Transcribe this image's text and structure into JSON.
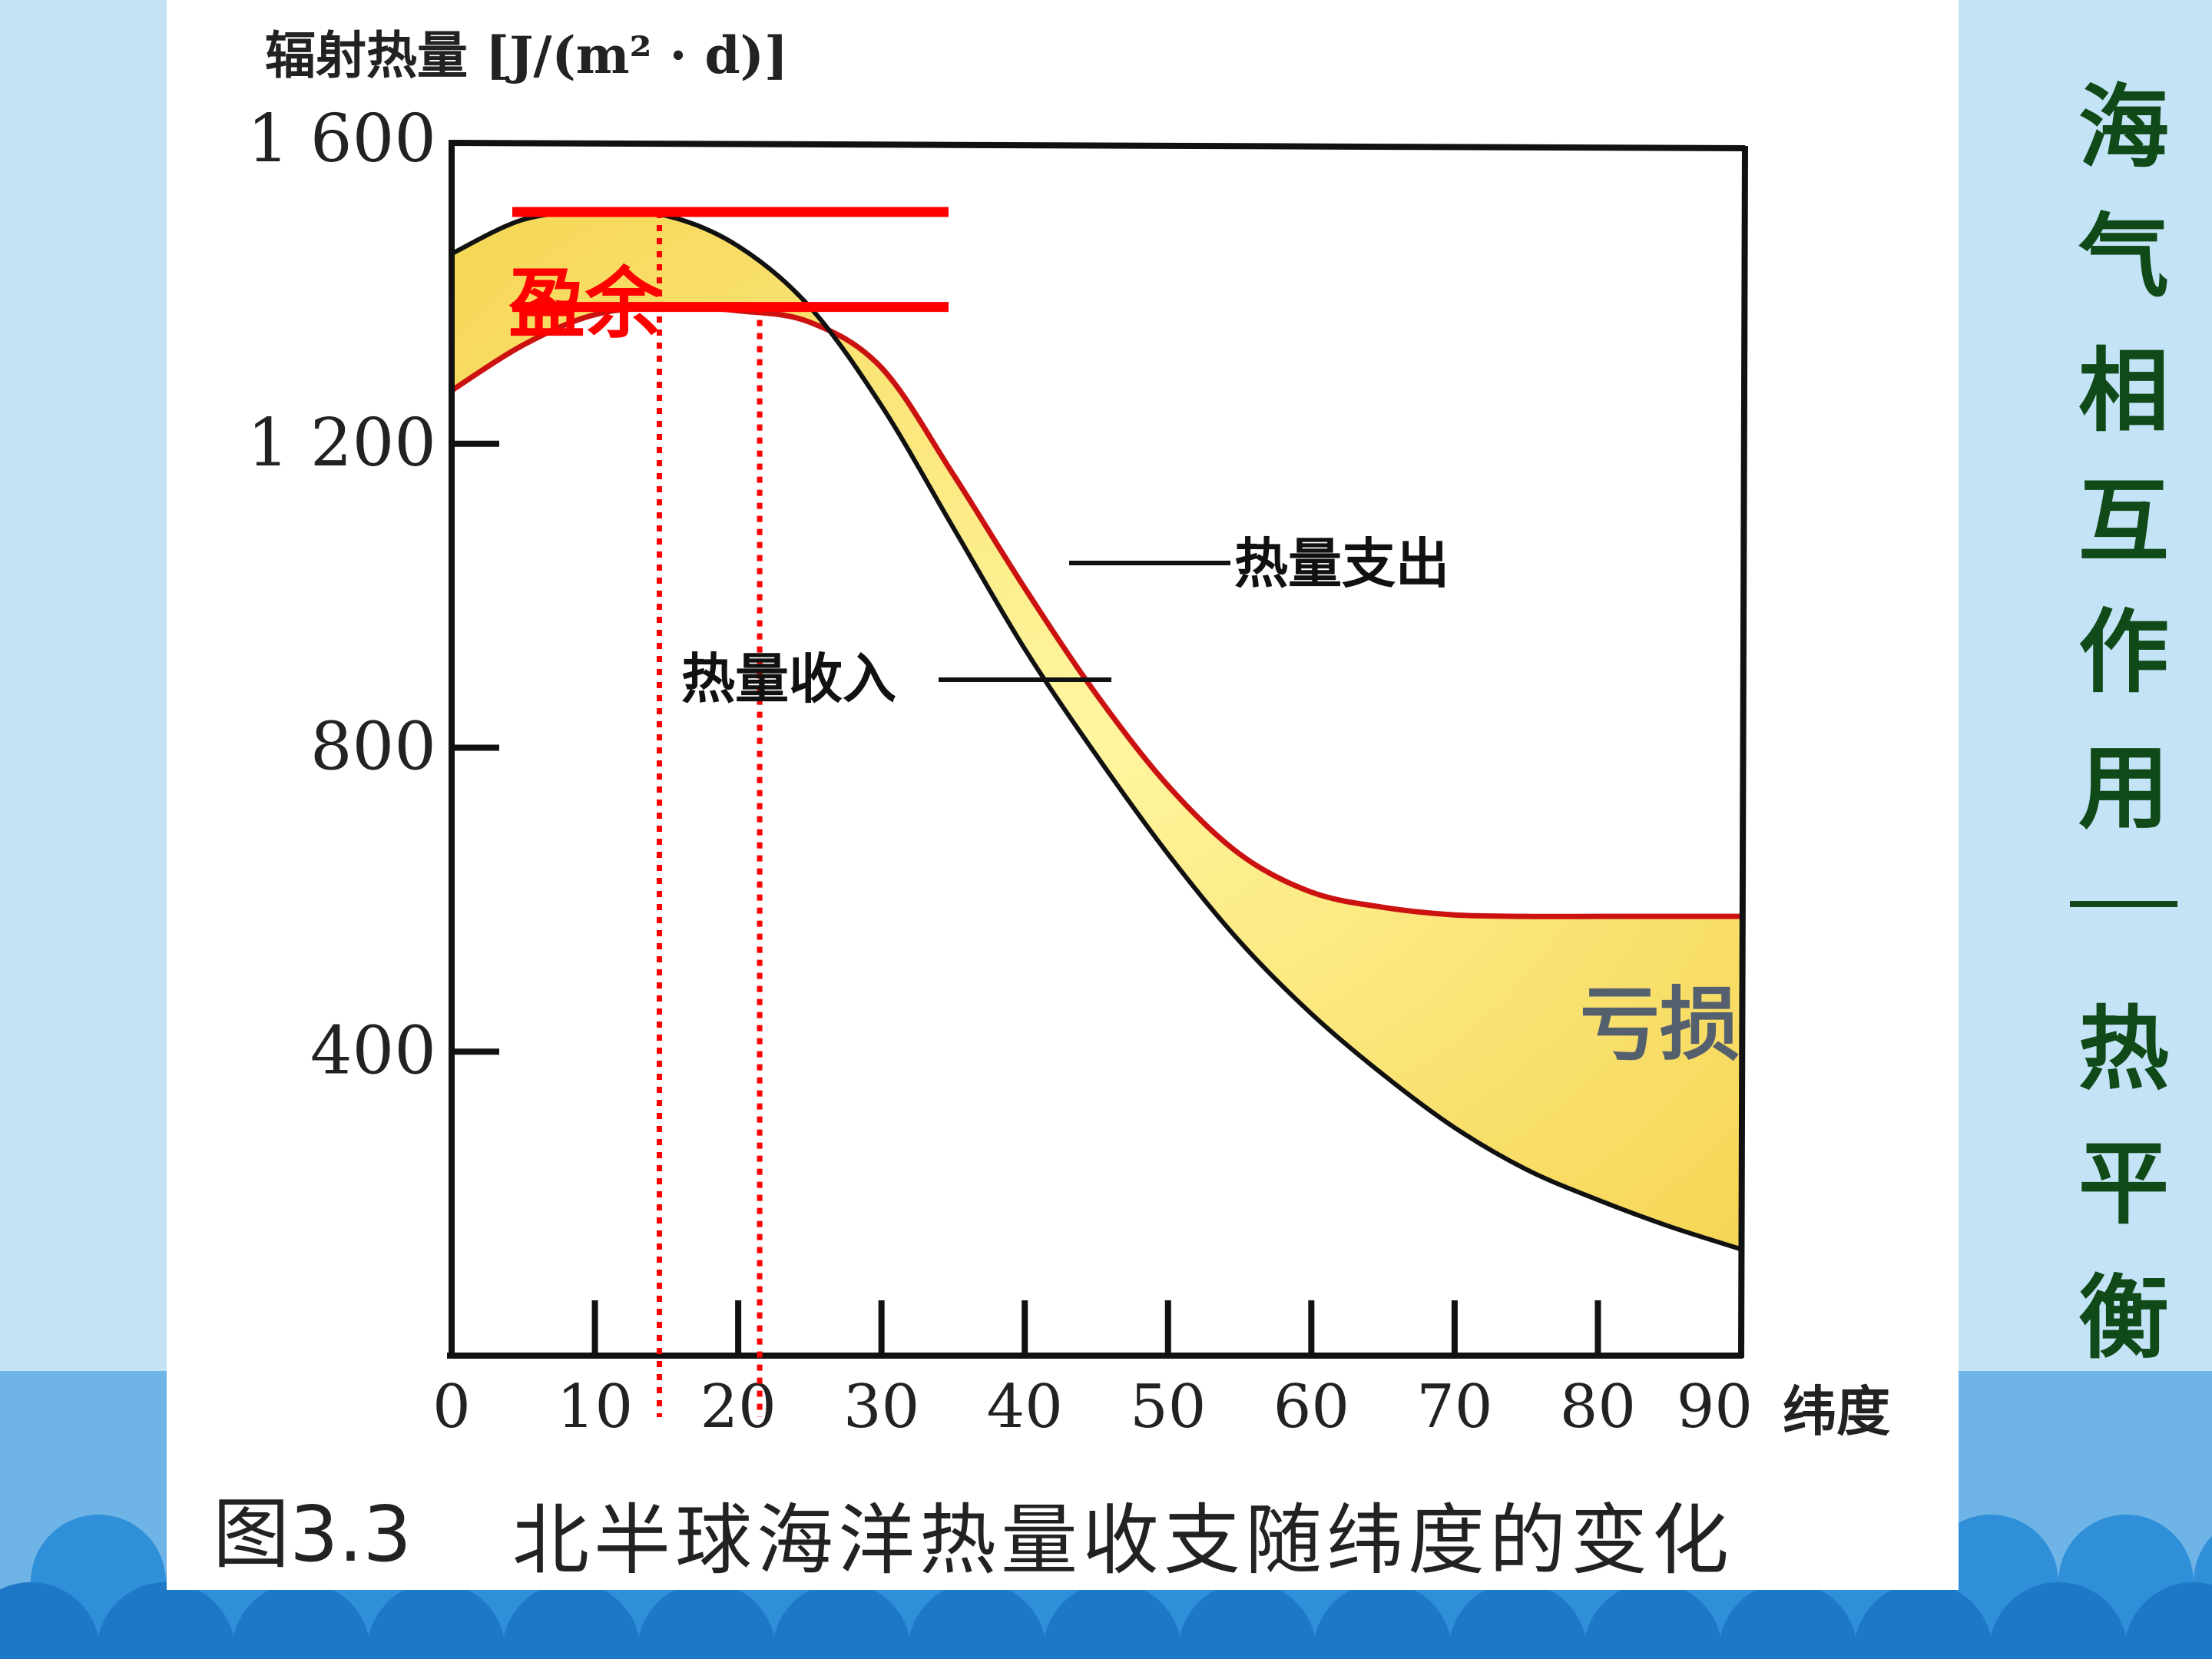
{
  "slide": {
    "side_title_chars": [
      "海",
      "气",
      "相",
      "互",
      "作",
      "用",
      "热",
      "平",
      "衡"
    ],
    "colors": {
      "background": "#c5e3f7",
      "bottom_band": "#6fb4e6",
      "wave": "#2f8fd8",
      "side_title": "#0f4a18",
      "panel": "#ffffff",
      "annotation_red": "#ff0000",
      "deficit_label": "#55606e",
      "fill_area": "#ffe56a"
    }
  },
  "chart_data": {
    "type": "line",
    "title": "北半球海洋热量收支随纬度的变化",
    "figure_label": "图3.3",
    "ylabel": "辐射热量 [J/(m² · d)]",
    "xlabel": "纬度",
    "xlim": [
      0,
      90
    ],
    "ylim": [
      0,
      1600
    ],
    "x_ticks": [
      0,
      10,
      20,
      30,
      40,
      50,
      60,
      70,
      80,
      90
    ],
    "x_tick_labels": [
      "0",
      "10",
      "20",
      "30",
      "40",
      "50",
      "60",
      "70",
      "80",
      "90"
    ],
    "y_ticks": [
      400,
      800,
      1200,
      1600
    ],
    "y_tick_labels": [
      "400",
      "800",
      "1 200",
      "1 600"
    ],
    "x": [
      0,
      5,
      10,
      15,
      20,
      25,
      30,
      35,
      40,
      45,
      50,
      55,
      60,
      65,
      70,
      75,
      80,
      85,
      90
    ],
    "series": [
      {
        "name": "热量收入",
        "color": "#111111",
        "values": [
          1450,
          1495,
          1505,
          1500,
          1460,
          1380,
          1250,
          1090,
          930,
          790,
          660,
          545,
          450,
          370,
          300,
          245,
          205,
          170,
          140
        ]
      },
      {
        "name": "热量支出",
        "color": "#cc1111",
        "values": [
          1270,
          1330,
          1370,
          1380,
          1375,
          1360,
          1300,
          1160,
          1010,
          870,
          750,
          660,
          610,
          590,
          580,
          578,
          578,
          578,
          578
        ]
      }
    ],
    "annotations": {
      "surplus": "盈余",
      "deficit": "亏损",
      "income_label": "热量收入",
      "expense_label": "热量支出"
    },
    "surplus_lines_y": [
      1505,
      1380
    ],
    "dotted_lines_x": [
      14.5,
      21.5
    ]
  }
}
